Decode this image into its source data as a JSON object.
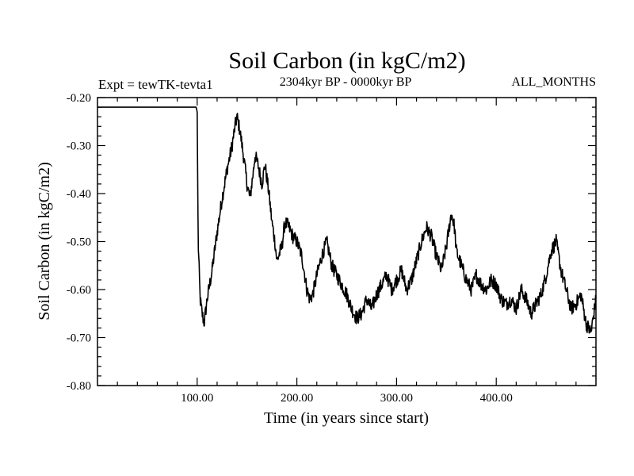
{
  "chart_data": {
    "type": "line",
    "title": "Soil Carbon (in kgC/m2)",
    "subtitle": "2304kyr BP - 0000kyr BP",
    "left_label": "Expt = tewTK-tevta1",
    "right_label": "ALL_MONTHS",
    "xlabel": "Time (in years since start)",
    "ylabel": "Soil Carbon (in kgC/m2)",
    "xlim": [
      0,
      500
    ],
    "ylim": [
      -0.8,
      -0.2
    ],
    "xticks": [
      100,
      200,
      300,
      400
    ],
    "xtick_labels": [
      "100.00",
      "200.00",
      "300.00",
      "400.00"
    ],
    "yticks": [
      -0.2,
      -0.3,
      -0.4,
      -0.5,
      -0.6,
      -0.7,
      -0.8
    ],
    "ytick_labels": [
      "-0.20",
      "-0.30",
      "-0.40",
      "-0.50",
      "-0.60",
      "-0.70",
      "-0.80"
    ],
    "series": [
      {
        "name": "soil carbon",
        "color": "#000000",
        "x": [
          0,
          99,
          100,
          101,
          103,
          105,
          107,
          110,
          115,
          120,
          125,
          130,
          135,
          138,
          140,
          143,
          147,
          150,
          153,
          156,
          158,
          161,
          165,
          168,
          172,
          175,
          178,
          180,
          185,
          188,
          192,
          196,
          200,
          205,
          210,
          213,
          216,
          220,
          225,
          230,
          235,
          240,
          245,
          250,
          255,
          260,
          265,
          270,
          275,
          280,
          285,
          290,
          295,
          300,
          305,
          310,
          315,
          320,
          325,
          330,
          335,
          340,
          345,
          350,
          355,
          358,
          360,
          365,
          370,
          375,
          380,
          385,
          390,
          395,
          400,
          405,
          410,
          415,
          420,
          425,
          430,
          435,
          440,
          445,
          450,
          455,
          460,
          465,
          470,
          475,
          480,
          485,
          490,
          495,
          500
        ],
        "y": [
          -0.22,
          -0.22,
          -0.23,
          -0.5,
          -0.62,
          -0.65,
          -0.67,
          -0.62,
          -0.56,
          -0.48,
          -0.41,
          -0.35,
          -0.3,
          -0.26,
          -0.24,
          -0.27,
          -0.33,
          -0.38,
          -0.41,
          -0.36,
          -0.32,
          -0.34,
          -0.38,
          -0.34,
          -0.4,
          -0.46,
          -0.5,
          -0.54,
          -0.51,
          -0.46,
          -0.47,
          -0.49,
          -0.5,
          -0.53,
          -0.6,
          -0.62,
          -0.61,
          -0.57,
          -0.53,
          -0.5,
          -0.55,
          -0.57,
          -0.59,
          -0.61,
          -0.64,
          -0.66,
          -0.65,
          -0.62,
          -0.64,
          -0.61,
          -0.59,
          -0.57,
          -0.6,
          -0.58,
          -0.56,
          -0.6,
          -0.58,
          -0.54,
          -0.5,
          -0.47,
          -0.49,
          -0.53,
          -0.56,
          -0.51,
          -0.44,
          -0.47,
          -0.52,
          -0.55,
          -0.58,
          -0.6,
          -0.57,
          -0.59,
          -0.6,
          -0.58,
          -0.59,
          -0.62,
          -0.63,
          -0.62,
          -0.64,
          -0.6,
          -0.62,
          -0.65,
          -0.63,
          -0.61,
          -0.57,
          -0.52,
          -0.5,
          -0.56,
          -0.6,
          -0.64,
          -0.63,
          -0.61,
          -0.67,
          -0.69,
          -0.62
        ]
      }
    ]
  }
}
